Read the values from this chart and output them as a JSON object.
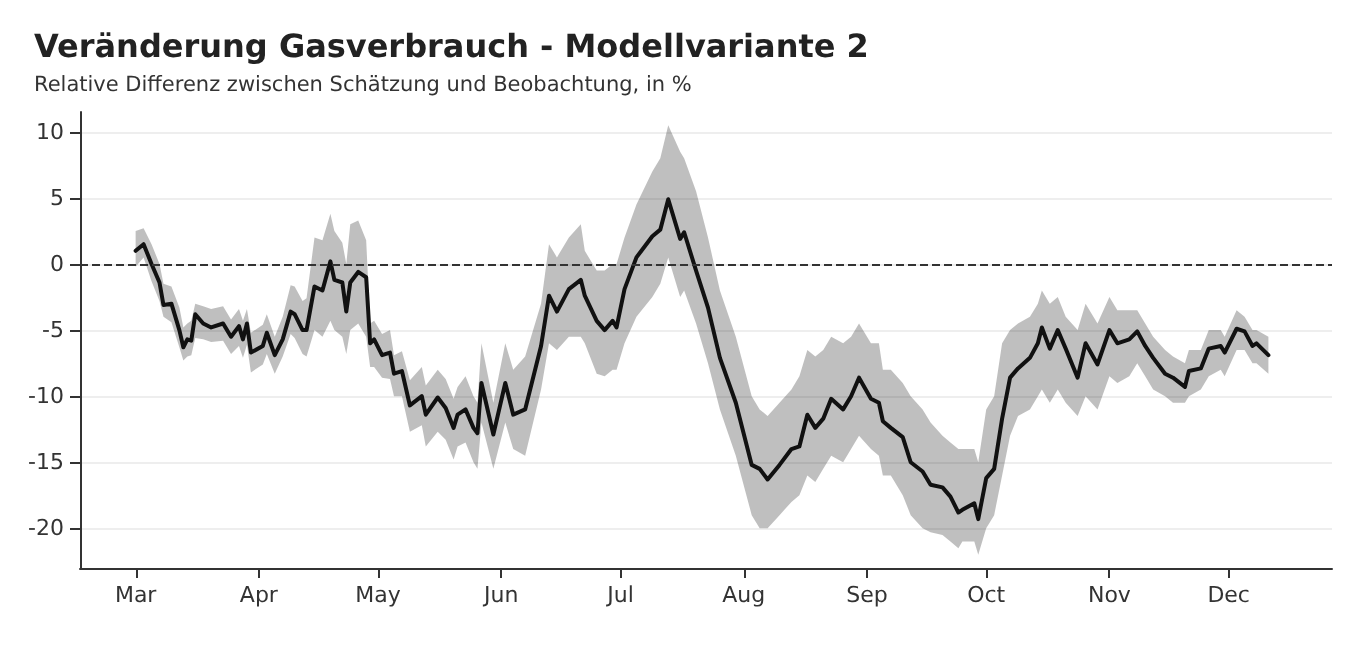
{
  "chart_data": {
    "type": "line",
    "title": "Veränderung Gasverbrauch - Modellvariante 2",
    "subtitle": "Relative Differenz zwischen Schätzung und Beobachtung, in %",
    "x": [
      "--03-01",
      "--03-03",
      "--03-05",
      "--03-07",
      "--03-08",
      "--03-10",
      "--03-12",
      "--03-13",
      "--03-14",
      "--03-15",
      "--03-16",
      "--03-18",
      "--03-20",
      "--03-23",
      "--03-25",
      "--03-27",
      "--03-28",
      "--03-29",
      "--03-30",
      "--04-02",
      "--04-03",
      "--04-05",
      "--04-07",
      "--04-09",
      "--04-10",
      "--04-12",
      "--04-13",
      "--04-15",
      "--04-17",
      "--04-19",
      "--04-20",
      "--04-22",
      "--04-23",
      "--04-24",
      "--04-26",
      "--04-28",
      "--04-29",
      "--04-30",
      "--05-02",
      "--05-04",
      "--05-05",
      "--05-07",
      "--05-09",
      "--05-12",
      "--05-13",
      "--05-16",
      "--05-18",
      "--05-20",
      "--05-21",
      "--05-23",
      "--05-25",
      "--05-26",
      "--05-27",
      "--05-30",
      "--06-02",
      "--06-04",
      "--06-07",
      "--06-11",
      "--06-13",
      "--06-15",
      "--06-18",
      "--06-21",
      "--06-22",
      "--06-25",
      "--06-27",
      "--06-29",
      "--06-30",
      "--07-02",
      "--07-05",
      "--07-09",
      "--07-11",
      "--07-13",
      "--07-16",
      "--07-17",
      "--07-20",
      "--07-23",
      "--07-26",
      "--07-30",
      "--08-03",
      "--08-05",
      "--08-07",
      "--08-10",
      "--08-13",
      "--08-15",
      "--08-17",
      "--08-19",
      "--08-21",
      "--08-23",
      "--08-26",
      "--08-28",
      "--08-30",
      "--09-02",
      "--09-04",
      "--09-05",
      "--09-07",
      "--09-10",
      "--09-12",
      "--09-15",
      "--09-17",
      "--09-20",
      "--09-22",
      "--09-24",
      "--09-25",
      "--09-28",
      "--09-29",
      "--10-01",
      "--10-03",
      "--10-05",
      "--10-07",
      "--10-09",
      "--10-12",
      "--10-14",
      "--10-15",
      "--10-17",
      "--10-19",
      "--10-21",
      "--10-24",
      "--10-26",
      "--10-29",
      "--11-01",
      "--11-03",
      "--11-06",
      "--11-08",
      "--11-10",
      "--11-12",
      "--11-15",
      "--11-17",
      "--11-20",
      "--11-21",
      "--11-24",
      "--11-26",
      "--11-29",
      "--11-30",
      "--12-03",
      "--12-05",
      "--12-07",
      "--12-08",
      "--12-11"
    ],
    "series": [
      {
        "color": "#111111",
        "values": [
          1.0,
          1.5,
          0,
          -1.4,
          -3.1,
          -3.0,
          -5,
          -6.3,
          -5.7,
          -5.8,
          -3.8,
          -4.5,
          -4.8,
          -4.5,
          -5.5,
          -4.7,
          -5.7,
          -4.5,
          -6.7,
          -6.2,
          -5.2,
          -6.9,
          -5.7,
          -3.6,
          -3.8,
          -5,
          -5,
          -1.7,
          -2,
          0.2,
          -1.2,
          -1.4,
          -3.6,
          -1.4,
          -0.6,
          -1,
          -6,
          -5.7,
          -6.9,
          -6.7,
          -8.3,
          -8.1,
          -10.7,
          -10,
          -11.4,
          -10.1,
          -10.9,
          -12.4,
          -11.4,
          -11,
          -12.4,
          -12.8,
          -9,
          -12.9,
          -9,
          -11.4,
          -11,
          -6.2,
          -2.4,
          -3.6,
          -1.9,
          -1.2,
          -2.4,
          -4.3,
          -5,
          -4.3,
          -4.8,
          -1.9,
          0.5,
          2.1,
          2.6,
          4.9,
          1.9,
          2.4,
          -0.5,
          -3.3,
          -7.1,
          -10.5,
          -15.2,
          -15.5,
          -16.3,
          -15.2,
          -14,
          -13.8,
          -11.4,
          -12.4,
          -11.7,
          -10.2,
          -11,
          -10,
          -8.6,
          -10.2,
          -10.5,
          -11.9,
          -12.4,
          -13.1,
          -15,
          -15.7,
          -16.7,
          -16.9,
          -17.6,
          -18.8,
          -18.6,
          -18.1,
          -19.3,
          -16.2,
          -15.5,
          -11.7,
          -8.6,
          -7.9,
          -7.1,
          -6,
          -4.8,
          -6.4,
          -5,
          -6.4,
          -8.6,
          -6,
          -7.6,
          -5,
          -6,
          -5.7,
          -5.1,
          -6.2,
          -7.1,
          -8.3,
          -8.6,
          -9.3,
          -8.1,
          -7.9,
          -6.4,
          -6.2,
          -6.7,
          -4.9,
          -5.1,
          -6.2,
          -6,
          -6.9
        ],
        "upper": [
          2.5,
          2.7,
          1.5,
          0,
          -1.5,
          -1.7,
          -3.3,
          -4.8,
          -4.5,
          -4.3,
          -3,
          -3.2,
          -3.4,
          -3.2,
          -4.2,
          -3.4,
          -4.3,
          -3.4,
          -5.2,
          -4.6,
          -3.8,
          -5.5,
          -4,
          -1.6,
          -1.7,
          -2.8,
          -2.6,
          2,
          1.8,
          3.8,
          2.5,
          1.6,
          0,
          3,
          3.3,
          1.8,
          -4.5,
          -4.3,
          -5.3,
          -5,
          -6.9,
          -6.6,
          -8.8,
          -7.8,
          -9.2,
          -8,
          -8.7,
          -10.2,
          -9.3,
          -8.5,
          -10,
          -10.5,
          -6,
          -10.5,
          -6,
          -8,
          -7,
          -3,
          1.5,
          0.5,
          2,
          3,
          1,
          -0.5,
          -0.5,
          0,
          0,
          2,
          4.5,
          7,
          8,
          10.5,
          8.5,
          8,
          5.5,
          2,
          -2,
          -5.5,
          -10,
          -11,
          -11.5,
          -10.5,
          -9.5,
          -8.5,
          -6.5,
          -7,
          -6.5,
          -5.5,
          -6,
          -5.5,
          -4.5,
          -6,
          -6,
          -8,
          -8,
          -9,
          -10,
          -11,
          -12,
          -13,
          -13.5,
          -14,
          -14,
          -14,
          -15,
          -11,
          -10,
          -6,
          -5,
          -4.5,
          -4,
          -3,
          -2,
          -3,
          -2.5,
          -4,
          -5,
          -3,
          -4.5,
          -2.5,
          -3.5,
          -3.5,
          -3.5,
          -4.5,
          -5.5,
          -6.5,
          -7,
          -7.5,
          -6.5,
          -6.5,
          -5,
          -5,
          -5.5,
          -3.5,
          -4,
          -5,
          -5,
          -5.5
        ],
        "lower": [
          -0.2,
          0.5,
          -1.3,
          -2.8,
          -4,
          -4.4,
          -6.3,
          -7.3,
          -7,
          -6.9,
          -5.6,
          -5.7,
          -5.9,
          -5.8,
          -6.8,
          -6.2,
          -7.1,
          -6.1,
          -8.2,
          -7.6,
          -6.8,
          -8.3,
          -7,
          -5.3,
          -5.6,
          -6.8,
          -7,
          -5,
          -5.5,
          -4.3,
          -5,
          -5.5,
          -6.8,
          -5,
          -4.5,
          -5.5,
          -7.8,
          -7.8,
          -8.6,
          -8.7,
          -10,
          -10,
          -12.7,
          -12.2,
          -13.8,
          -12.7,
          -13.3,
          -14.8,
          -13.8,
          -13.5,
          -15,
          -15.5,
          -12,
          -15.5,
          -12,
          -14,
          -14.5,
          -9.5,
          -6,
          -6.5,
          -5.5,
          -5.5,
          -6,
          -8.3,
          -8.5,
          -8,
          -8,
          -6,
          -4,
          -2.5,
          -1.5,
          0.5,
          -2.5,
          -2,
          -4.5,
          -7.5,
          -11,
          -14.5,
          -19,
          -20,
          -20,
          -19,
          -18,
          -17.5,
          -16,
          -16.5,
          -15.5,
          -14.5,
          -15,
          -14,
          -13,
          -14,
          -14.5,
          -16,
          -16,
          -17.5,
          -19,
          -20,
          -20.3,
          -20.5,
          -21,
          -21.5,
          -21,
          -21,
          -22,
          -20,
          -19,
          -16,
          -13,
          -11.5,
          -11,
          -10,
          -9.5,
          -10.5,
          -9.5,
          -10.5,
          -11.5,
          -10,
          -11,
          -8.5,
          -9,
          -8.5,
          -7.5,
          -8.5,
          -9.5,
          -10,
          -10.5,
          -10.5,
          -10,
          -9.5,
          -8.5,
          -8,
          -8.5,
          -6.5,
          -6.5,
          -7.5,
          -7.5,
          -8.3
        ]
      }
    ],
    "xlim": [
      "--02-15",
      "--12-27"
    ],
    "xticks": [
      {
        "value": "--03-01",
        "label": "Mar"
      },
      {
        "value": "--04-01",
        "label": "Apr"
      },
      {
        "value": "--05-01",
        "label": "May"
      },
      {
        "value": "--06-01",
        "label": "Jun"
      },
      {
        "value": "--07-01",
        "label": "Jul"
      },
      {
        "value": "--08-01",
        "label": "Aug"
      },
      {
        "value": "--09-01",
        "label": "Sep"
      },
      {
        "value": "--10-01",
        "label": "Oct"
      },
      {
        "value": "--11-01",
        "label": "Nov"
      },
      {
        "value": "--12-01",
        "label": "Dec"
      }
    ],
    "ylim": [
      -23,
      11.5
    ],
    "yticks": [
      -20,
      -15,
      -10,
      -5,
      0,
      5,
      10
    ],
    "ref_lines": [
      {
        "axis": "y",
        "value": 0,
        "line_style": "dashed",
        "color": "#333333"
      }
    ],
    "grid": "y",
    "marker": "none",
    "line_style": "solid"
  }
}
